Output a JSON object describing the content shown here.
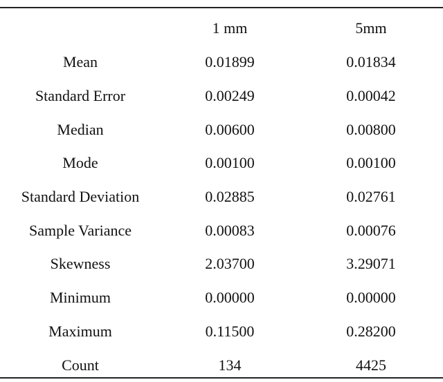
{
  "table": {
    "headers": [
      "",
      "1 mm",
      "5mm"
    ],
    "rows": [
      {
        "label": "Mean",
        "v1": "0.01899",
        "v2": "0.01834"
      },
      {
        "label": "Standard Error",
        "v1": "0.00249",
        "v2": "0.00042"
      },
      {
        "label": "Median",
        "v1": "0.00600",
        "v2": "0.00800"
      },
      {
        "label": "Mode",
        "v1": "0.00100",
        "v2": "0.00100"
      },
      {
        "label": "Standard Deviation",
        "v1": "0.02885",
        "v2": "0.02761"
      },
      {
        "label": "Sample Variance",
        "v1": "0.00083",
        "v2": "0.00076"
      },
      {
        "label": "Skewness",
        "v1": "2.03700",
        "v2": "3.29071"
      },
      {
        "label": "Minimum",
        "v1": "0.00000",
        "v2": "0.00000"
      },
      {
        "label": "Maximum",
        "v1": "0.11500",
        "v2": "0.28200"
      },
      {
        "label": "Count",
        "v1": "134",
        "v2": "4425"
      }
    ]
  }
}
